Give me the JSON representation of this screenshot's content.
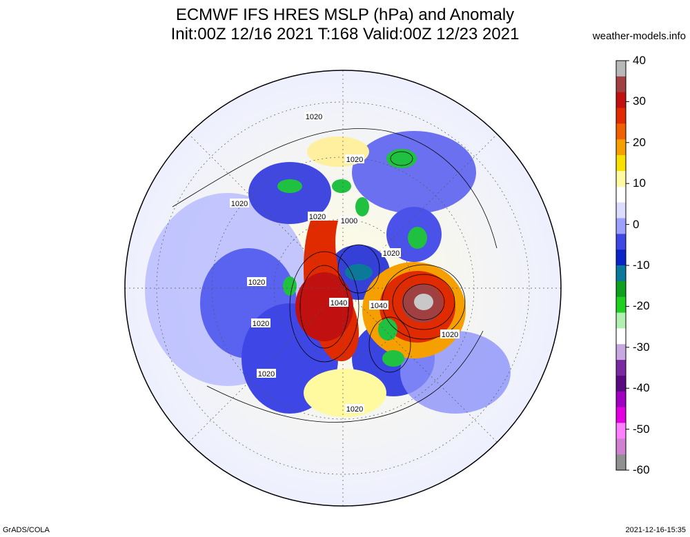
{
  "title": {
    "line1": "ECMWF IFS HRES MSLP (hPa) and Anomaly",
    "line2": "Init:00Z 12/16 2021 T:168 Valid:00Z 12/23 2021"
  },
  "source": "weather-models.info",
  "footer": {
    "left": "GrADS/COLA",
    "right": "2021-12-16-15:35"
  },
  "colorbar": {
    "labels": [
      "40",
      "30",
      "20",
      "10",
      "0",
      "-10",
      "-20",
      "-30",
      "-40",
      "-50",
      "-60"
    ],
    "colors": [
      "#b8b8b8",
      "#a04040",
      "#c01010",
      "#e02a00",
      "#f06000",
      "#f5a000",
      "#f8e000",
      "#fff9a0",
      "#ffffff",
      "#dcdcff",
      "#9ea0ff",
      "#3f46e6",
      "#0a24c8",
      "#0b7a9a",
      "#0fa020",
      "#20d020",
      "#b0f0b0",
      "#ffffff",
      "#c8a8e0",
      "#7a2aa0",
      "#5a0a80",
      "#a000c0",
      "#e000e0",
      "#ff80ff",
      "#d080d0",
      "#909090"
    ]
  },
  "contour_labels": [
    {
      "text": "1020",
      "id": "c1"
    },
    {
      "text": "1020",
      "id": "c2"
    },
    {
      "text": "1020",
      "id": "c3"
    },
    {
      "text": "1020",
      "id": "c4"
    },
    {
      "text": "1000",
      "id": "c5"
    },
    {
      "text": "1020",
      "id": "c6"
    },
    {
      "text": "1020",
      "id": "c7"
    },
    {
      "text": "1040",
      "id": "c8"
    },
    {
      "text": "1040",
      "id": "c9"
    },
    {
      "text": "1020",
      "id": "c10"
    },
    {
      "text": "1020",
      "id": "c11"
    },
    {
      "text": "1020",
      "id": "c12"
    },
    {
      "text": "1020",
      "id": "c13"
    }
  ]
}
